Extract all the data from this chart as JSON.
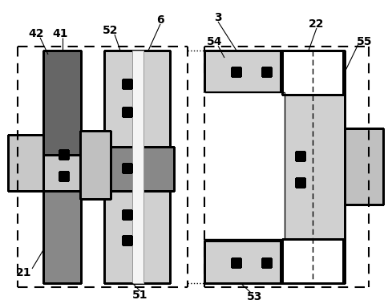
{
  "bg_color": "#ffffff",
  "c_light": "#d0d0d0",
  "c_medium": "#a0a0a0",
  "c_dark": "#707070",
  "c_white": "#ffffff",
  "c_black": "#000000",
  "c_dotted": "#c8c8c8",
  "fig_width": 4.85,
  "fig_height": 3.79,
  "dpi": 100
}
